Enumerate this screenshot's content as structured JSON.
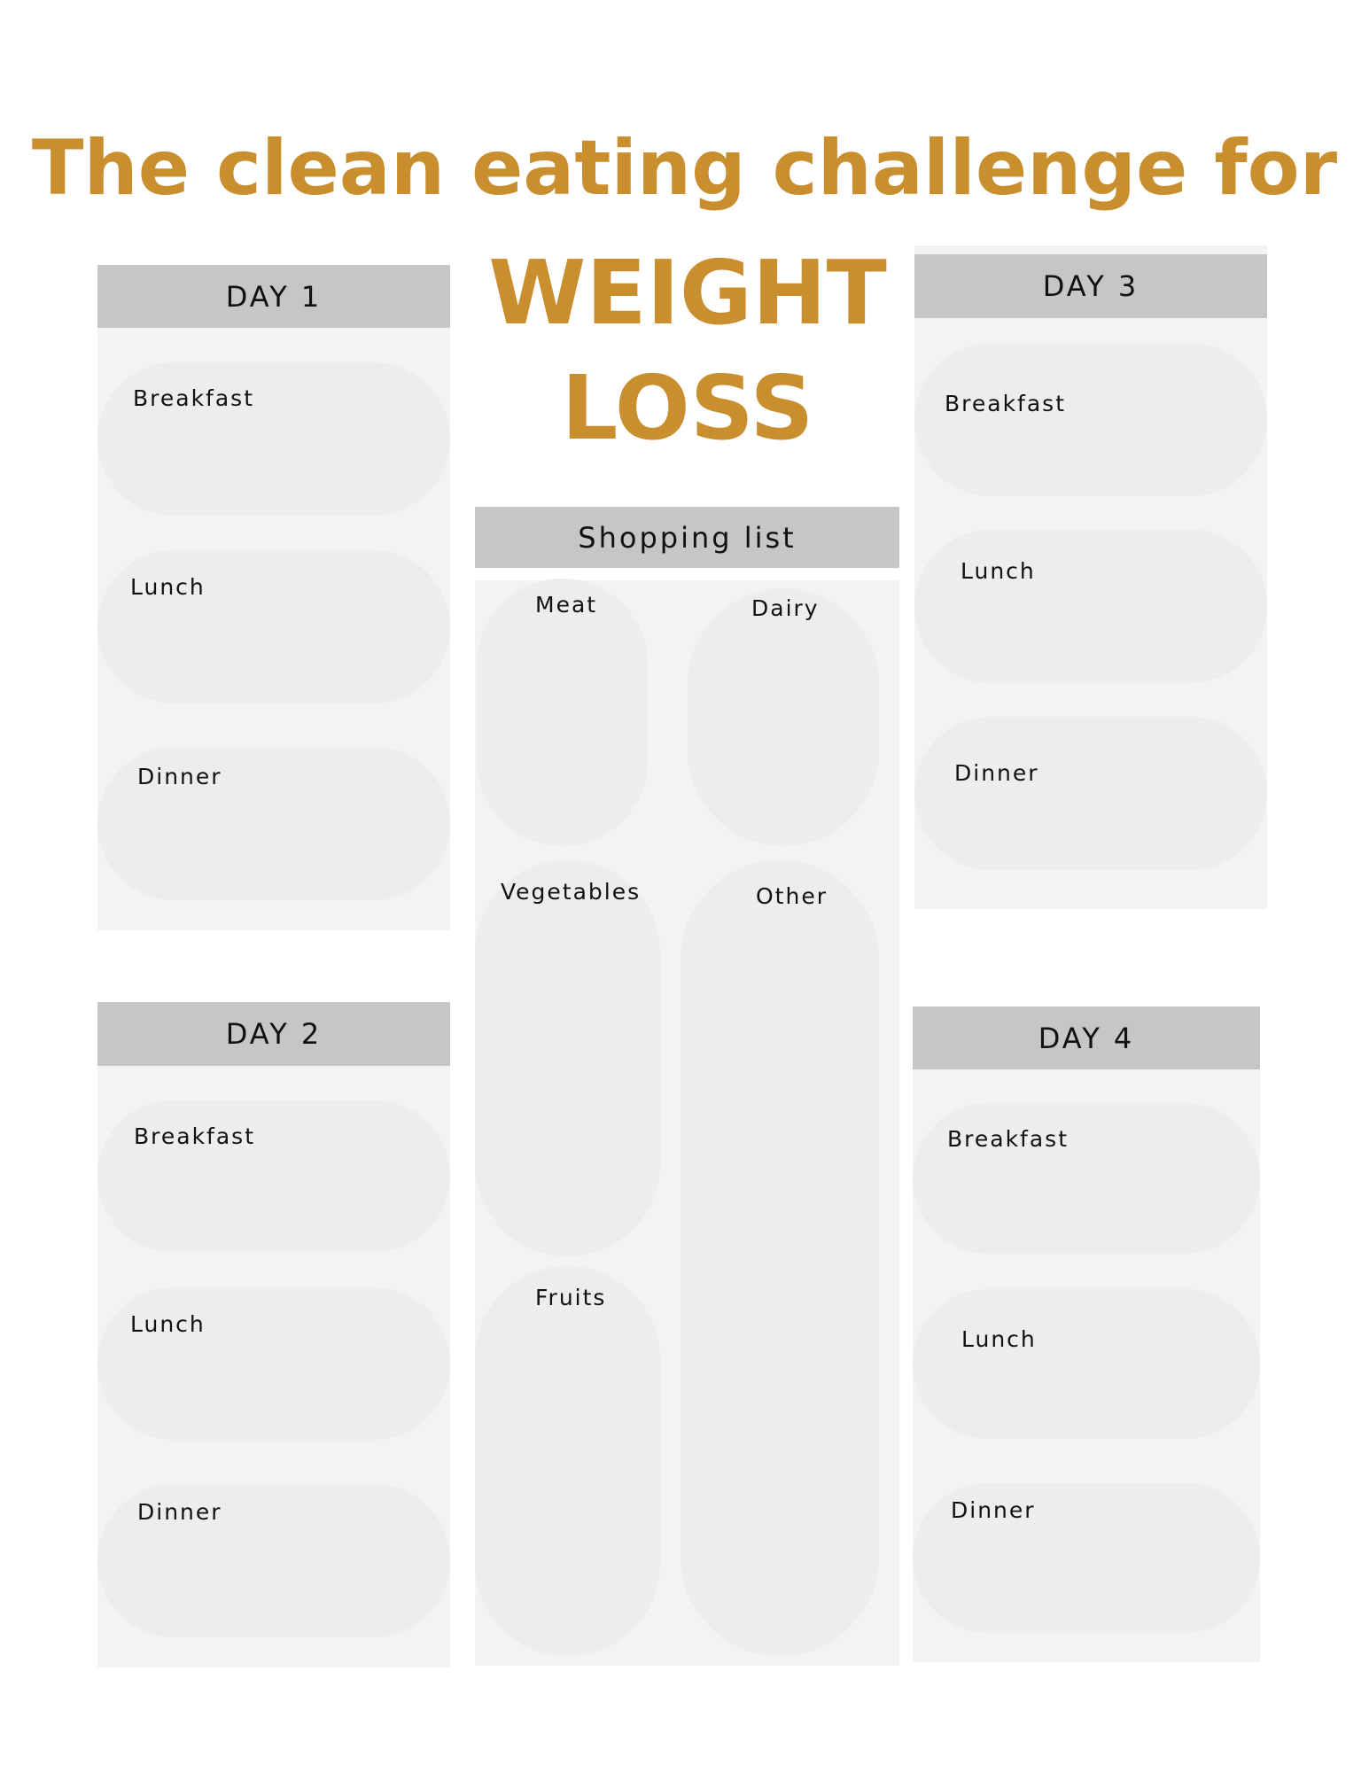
{
  "title": {
    "line1": "The clean eating challenge for",
    "line2": "WEIGHT",
    "line3": "LOSS",
    "color": "#C98E2E"
  },
  "days": [
    {
      "label": "DAY 1",
      "meals": [
        "Breakfast",
        "Lunch",
        "Dinner"
      ]
    },
    {
      "label": "DAY 2",
      "meals": [
        "Breakfast",
        "Lunch",
        "Dinner"
      ]
    },
    {
      "label": "DAY 3",
      "meals": [
        "Breakfast",
        "Lunch",
        "Dinner"
      ]
    },
    {
      "label": "DAY 4",
      "meals": [
        "Breakfast",
        "Lunch",
        "Dinner"
      ]
    }
  ],
  "shopping": {
    "title": "Shopping list",
    "categories": [
      "Meat",
      "Dairy",
      "Vegetables",
      "Other",
      "Fruits"
    ]
  }
}
